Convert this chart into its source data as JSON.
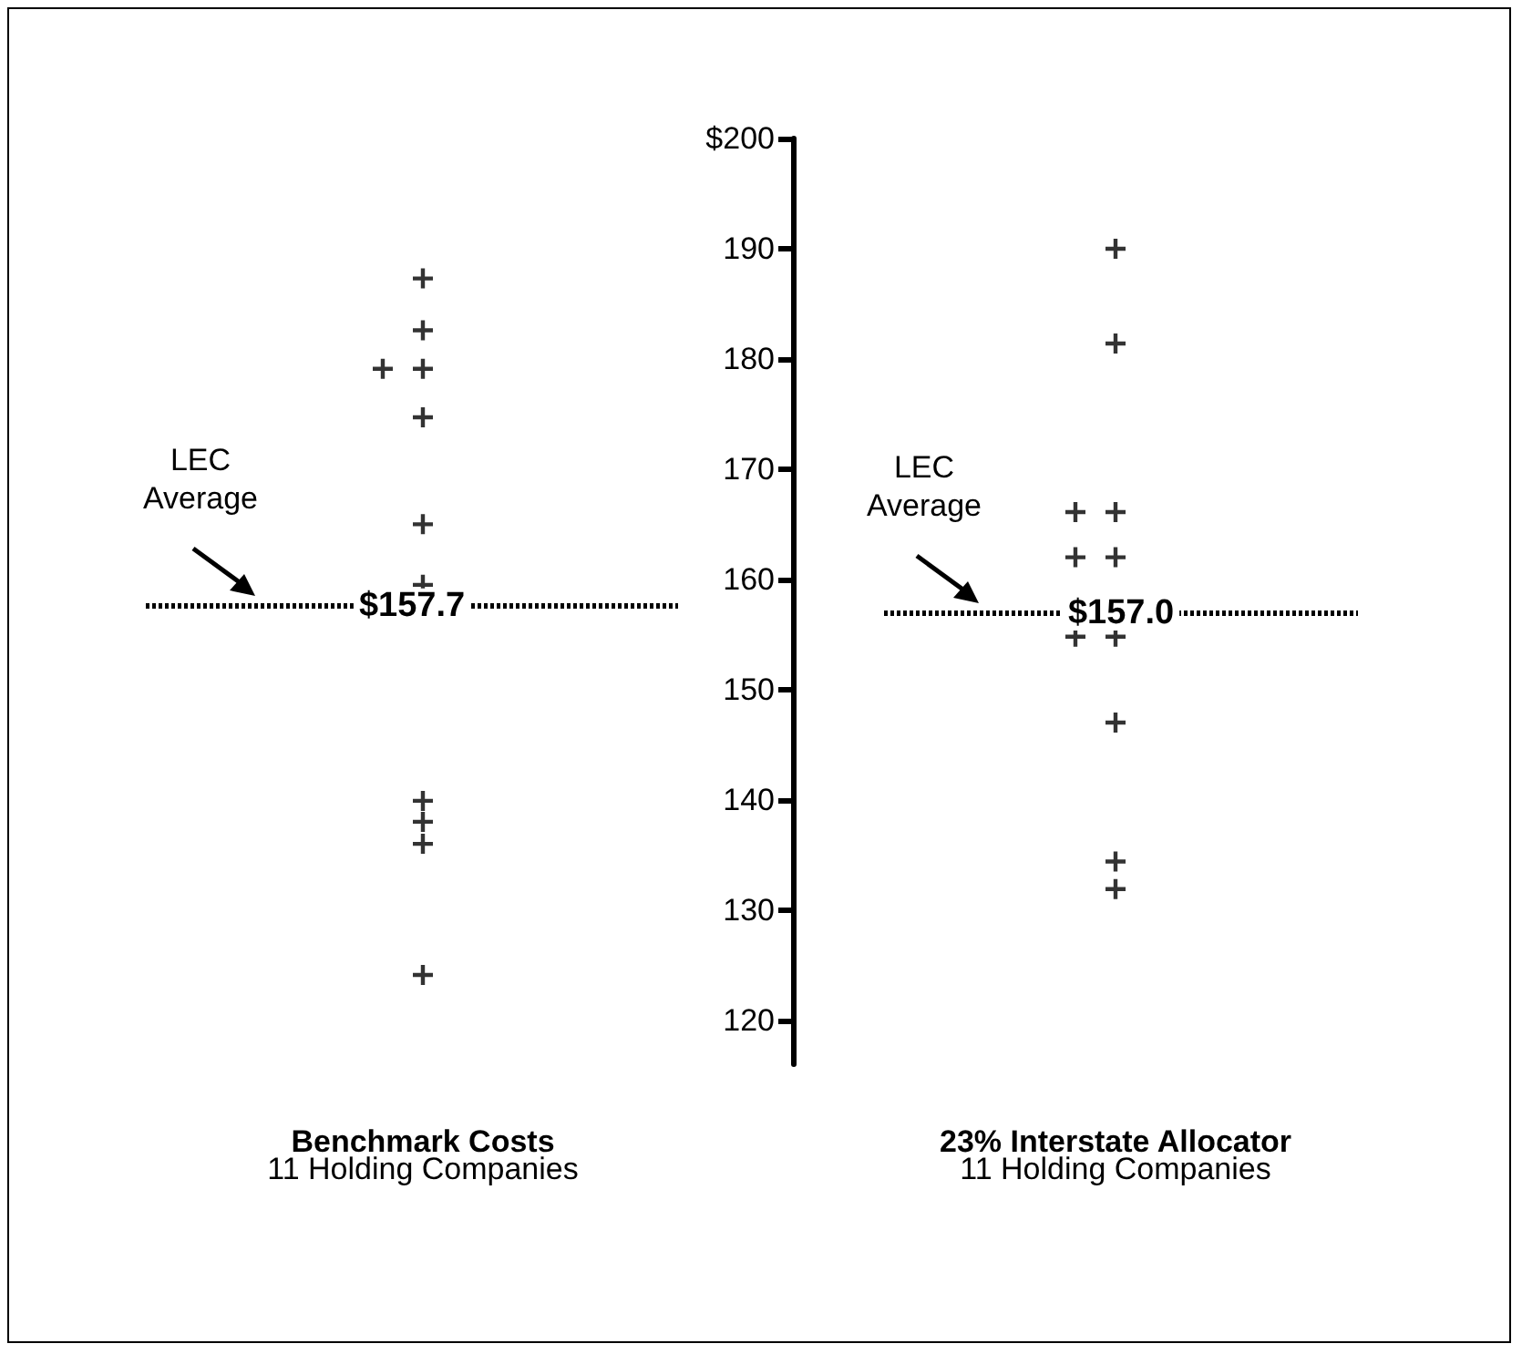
{
  "chart_data": {
    "type": "scatter",
    "categories": [
      "Benchmark Costs",
      "23% Interstate Allocator"
    ],
    "series": [
      {
        "color": "#000000",
        "x": [
          "Benchmark Costs",
          "Benchmark Costs",
          "Benchmark Costs",
          "Benchmark Costs",
          "Benchmark Costs",
          "Benchmark Costs",
          "Benchmark Costs",
          "Benchmark Costs",
          "Benchmark Costs",
          "Benchmark Costs",
          "Benchmark Costs"
        ],
        "values": [
          187.3,
          182.6,
          179.1,
          179.1,
          174.7,
          165.0,
          159.5,
          139.9,
          138.0,
          136.0,
          124.1
        ]
      },
      {
        "color": "#000000",
        "x": [
          "23% Interstate Allocator",
          "23% Interstate Allocator",
          "23% Interstate Allocator",
          "23% Interstate Allocator",
          "23% Interstate Allocator",
          "23% Interstate Allocator",
          "23% Interstate Allocator",
          "23% Interstate Allocator",
          "23% Interstate Allocator",
          "23% Interstate Allocator",
          "23% Interstate Allocator"
        ],
        "values": [
          190.0,
          181.4,
          166.1,
          166.1,
          162.0,
          162.0,
          154.8,
          154.8,
          147.0,
          134.4,
          131.9
        ]
      }
    ],
    "marker": "cross",
    "ylim": [
      116,
      200
    ],
    "yticks": [
      {
        "value": 200,
        "label": "$200"
      },
      190,
      180,
      170,
      160,
      150,
      140,
      130,
      120
    ],
    "ref_lines": [
      {
        "axis": "y",
        "value": 157.7,
        "label": "$157.7",
        "line_style": "dotted"
      },
      {
        "axis": "y",
        "value": 157.0,
        "label": "$157.0",
        "line_style": "dotted"
      }
    ],
    "annotations": [
      "LEC\nAverage",
      "LEC\nAverage",
      "11 Holding Companies",
      "11 Holding Companies"
    ]
  }
}
